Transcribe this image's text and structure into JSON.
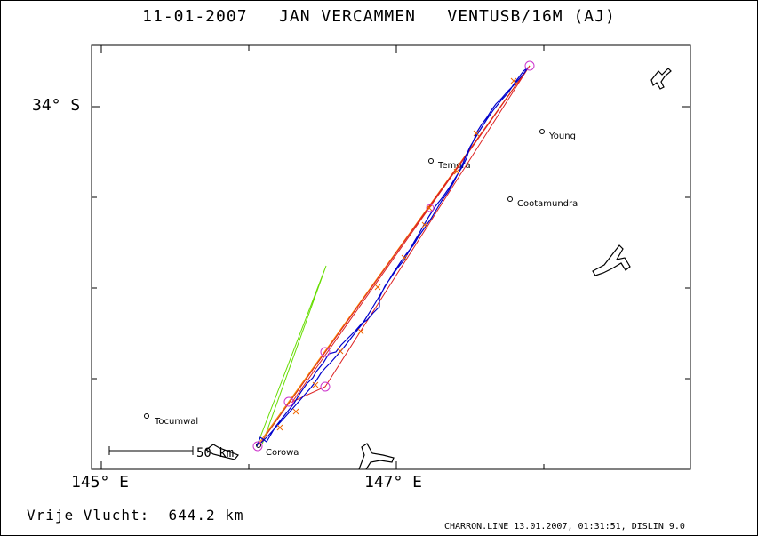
{
  "title": "11-01-2007   JAN VERCAMMEN   VENTUSB/16M (AJ)",
  "axes": {
    "lat_label": "34° S",
    "lon_labels": [
      "145° E",
      "147° E"
    ]
  },
  "towns": [
    {
      "name": "Young"
    },
    {
      "name": "Temora"
    },
    {
      "name": "Cootamundra"
    },
    {
      "name": "Tocumwal"
    },
    {
      "name": "Corowa"
    }
  ],
  "scale_bar": {
    "label": "50 km"
  },
  "footer": {
    "distance_label": "Vrije Vlucht:",
    "distance_value": "644.2 km",
    "credit": "CHARRON.LINE 13.01.2007, 01:31:51, DISLIN 9.0"
  },
  "colors": {
    "track": "#0000cc",
    "task_red": "#dd2222",
    "task_orange": "#ff8800",
    "task_green": "#66dd00",
    "turnpoint": "#cc33cc"
  }
}
